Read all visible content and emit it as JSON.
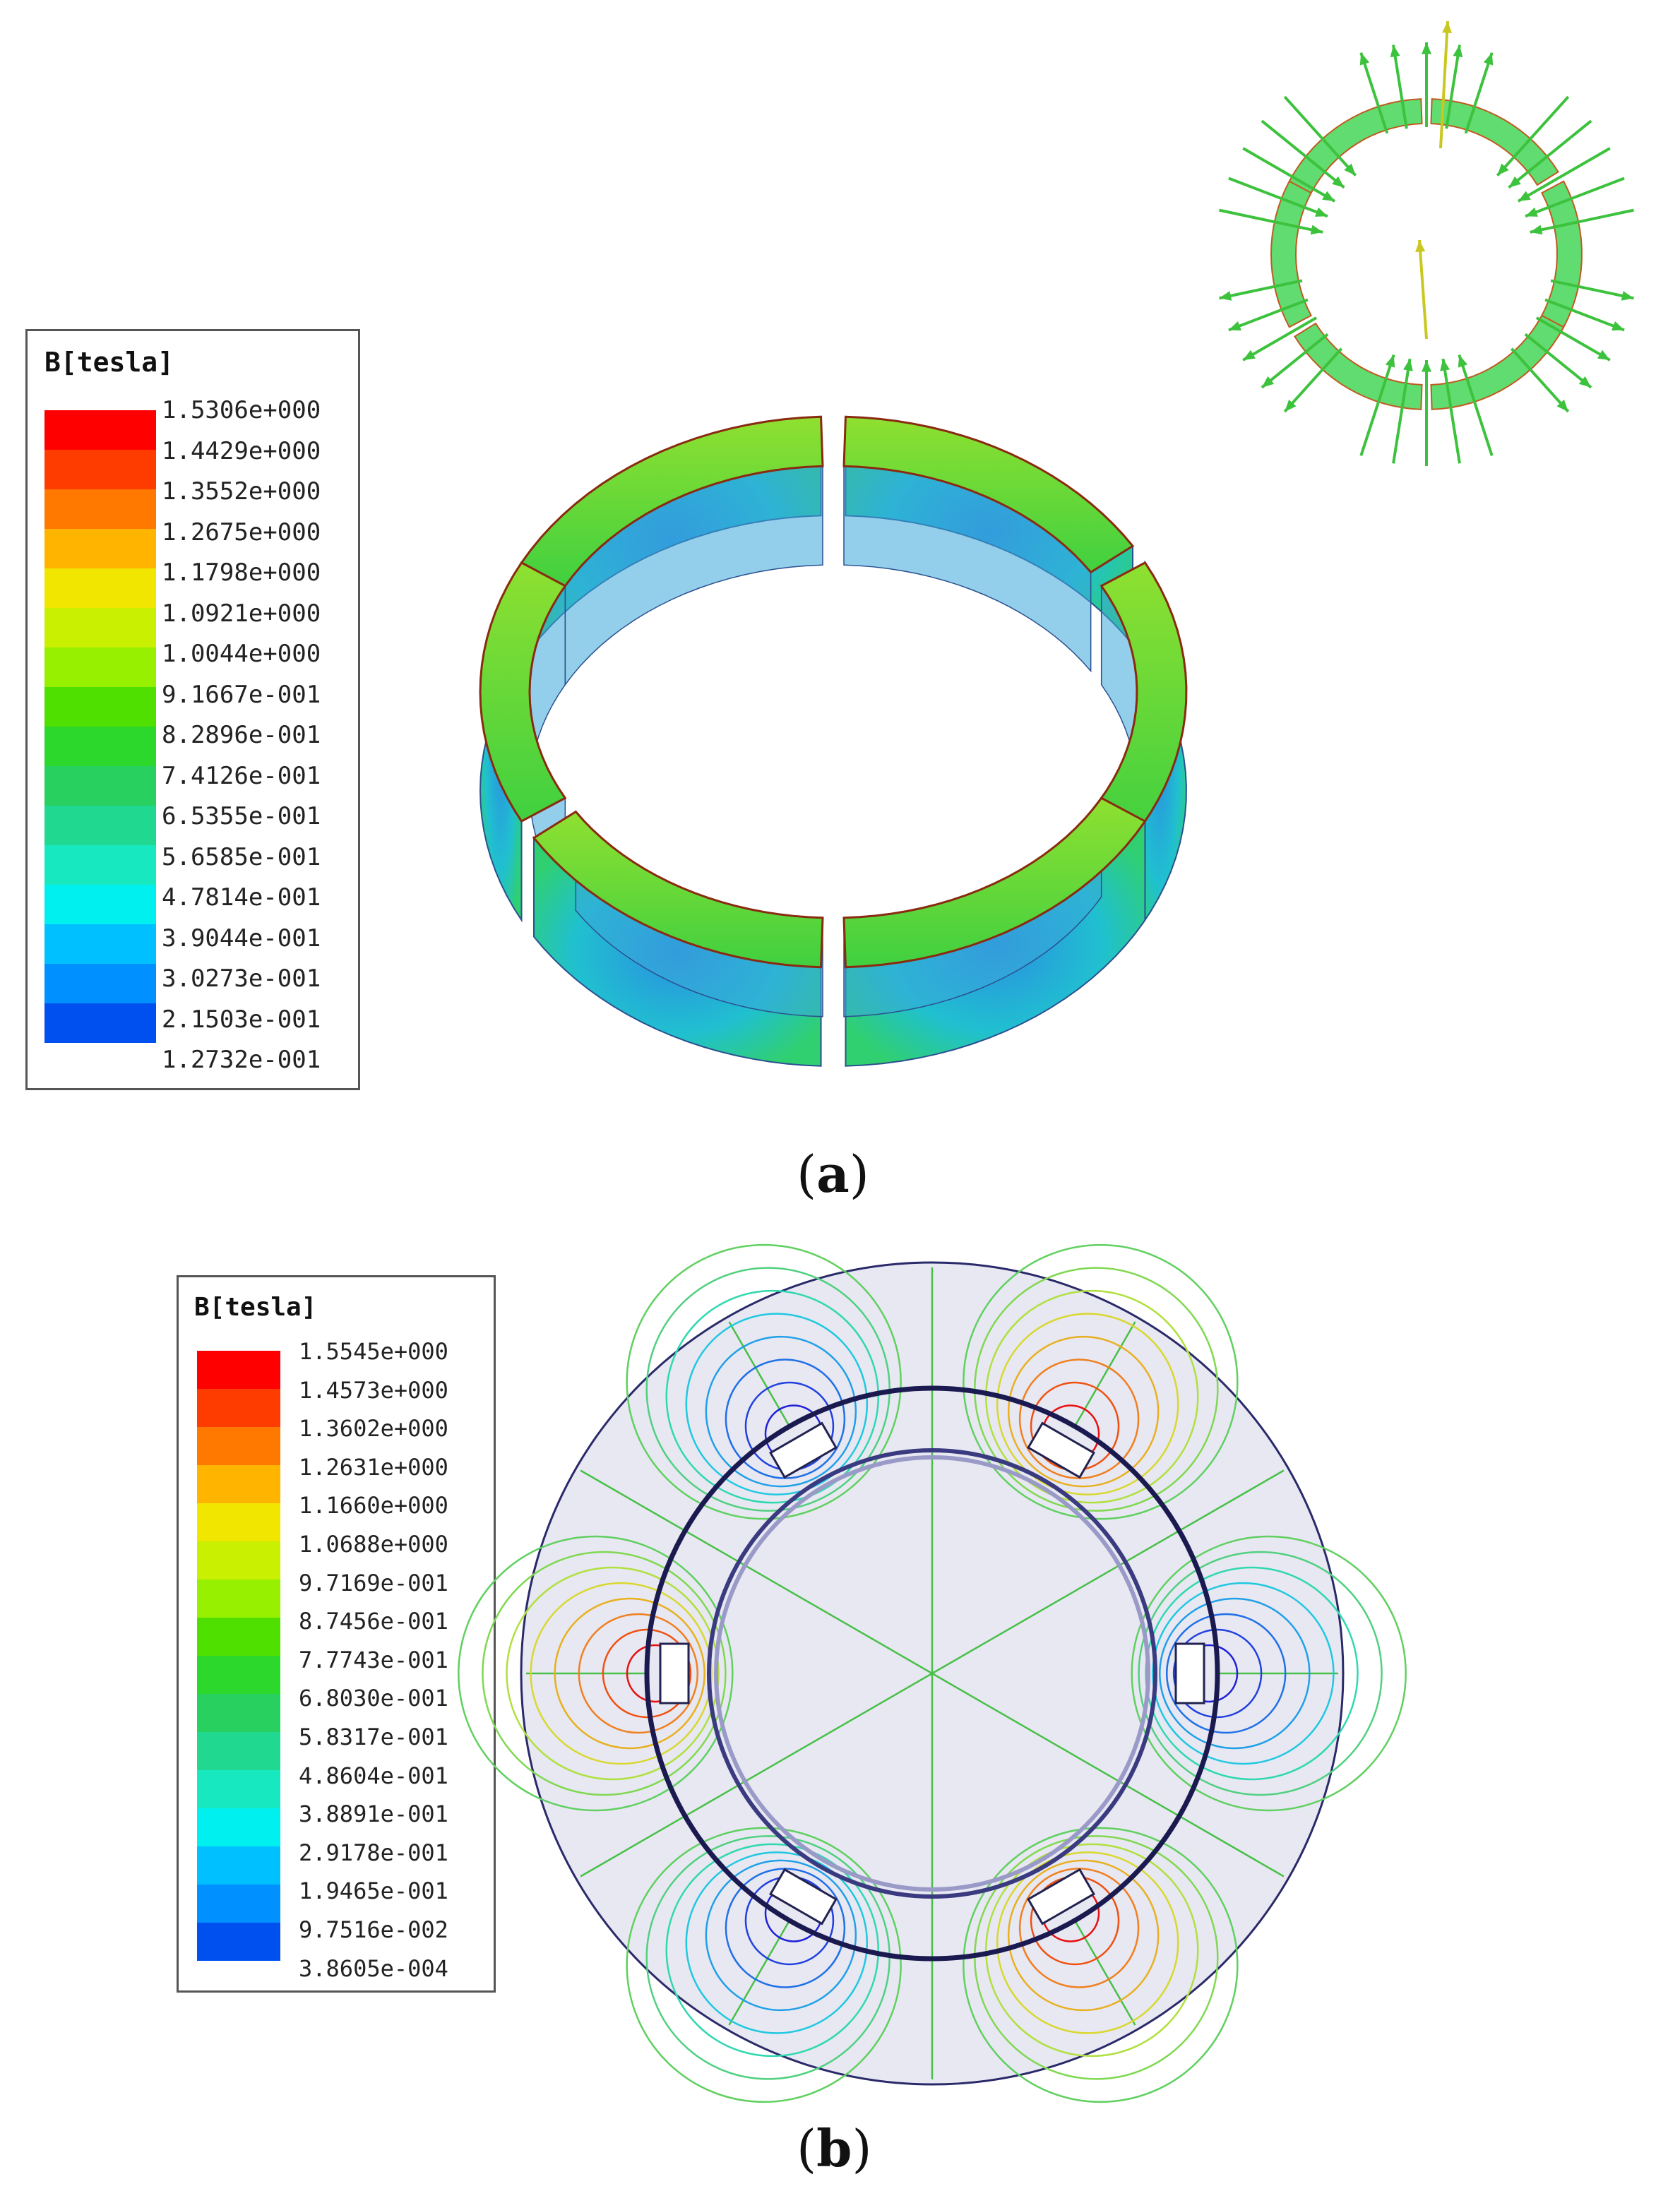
{
  "panels": [
    {
      "id": "a",
      "caption": "a",
      "legend": {
        "title": "B[tesla]",
        "ticks": [
          "1.5306e+000",
          "1.4429e+000",
          "1.3552e+000",
          "1.2675e+000",
          "1.1798e+000",
          "1.0921e+000",
          "1.0044e+000",
          "9.1667e-001",
          "8.2896e-001",
          "7.4126e-001",
          "6.5355e-001",
          "5.6585e-001",
          "4.7814e-001",
          "3.9044e-001",
          "3.0273e-001",
          "2.1503e-001",
          "1.2732e-001"
        ],
        "colors": [
          "#ff0000",
          "#ff3c00",
          "#ff7800",
          "#ffb400",
          "#f0e600",
          "#c8f000",
          "#96f000",
          "#50e000",
          "#2cd82c",
          "#28d060",
          "#20d890",
          "#18e8c0",
          "#00f0f0",
          "#00c0ff",
          "#0090ff",
          "#0050f0",
          "#0000ff"
        ]
      }
    },
    {
      "id": "b",
      "caption": "b",
      "legend": {
        "title": "B[tesla]",
        "ticks": [
          "1.5545e+000",
          "1.4573e+000",
          "1.3602e+000",
          "1.2631e+000",
          "1.1660e+000",
          "1.0688e+000",
          "9.7169e-001",
          "8.7456e-001",
          "7.7743e-001",
          "6.8030e-001",
          "5.8317e-001",
          "4.8604e-001",
          "3.8891e-001",
          "2.9178e-001",
          "1.9465e-001",
          "9.7516e-002",
          "3.8605e-004"
        ],
        "colors": [
          "#ff0000",
          "#ff3c00",
          "#ff7800",
          "#ffb400",
          "#f0e600",
          "#c8f000",
          "#96f000",
          "#50e000",
          "#2cd82c",
          "#28d060",
          "#20d890",
          "#18e8c0",
          "#00f0f0",
          "#00c0ff",
          "#0090ff",
          "#0050f0",
          "#0000ff"
        ]
      }
    }
  ]
}
